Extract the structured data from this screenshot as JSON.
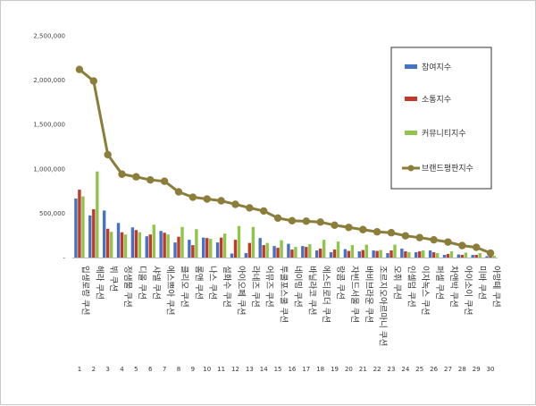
{
  "chart_data": {
    "type": "bar",
    "title": "",
    "xlabel": "",
    "ylabel": "",
    "ylim": [
      0,
      2500000
    ],
    "yticks": [
      "-",
      "500,000",
      "1,000,000",
      "1,500,000",
      "2,000,000",
      "2,500,000"
    ],
    "grid": false,
    "legend_position": "right",
    "categories": [
      "입생로랑 쿠션",
      "헤라 쿠션",
      "뷔 쿠션",
      "정샘물 쿠션",
      "디올 쿠션",
      "샤넬 쿠션",
      "에스쁘아 쿠션",
      "클리오 쿠션",
      "롬앤 쿠션",
      "나스 쿠션",
      "설화수 쿠션",
      "아이오페 쿠션",
      "라네즈 쿠션",
      "어뮤즈 쿠션",
      "투쿨포스쿨 쿠션",
      "네이밍 쿠션",
      "바닐라코 쿠션",
      "에스티로더 쿠션",
      "랑콤 쿠션",
      "자빈드서울 쿠션",
      "바비브라운 쿠션",
      "조르지오아르마니 쿠션",
      "오휘 쿠션",
      "인셀덤 쿠션",
      "이자녹스 쿠션",
      "퍼셀 쿠션",
      "차앤박 쿠션",
      "아이소이 쿠션",
      "미바 쿠션",
      "아망떼 쿠션"
    ],
    "ranks": [
      "1",
      "2",
      "3",
      "4",
      "5",
      "6",
      "7",
      "8",
      "9",
      "10",
      "11",
      "12",
      "13",
      "14",
      "15",
      "16",
      "17",
      "18",
      "19",
      "20",
      "21",
      "22",
      "23",
      "24",
      "25",
      "26",
      "27",
      "28",
      "29",
      "30"
    ],
    "series": [
      {
        "name": "참여지수",
        "type": "bar",
        "color": "#4472C4",
        "values": [
          665000,
          475000,
          530000,
          390000,
          340000,
          240000,
          300000,
          170000,
          200000,
          225000,
          170000,
          45000,
          50000,
          220000,
          130000,
          155000,
          130000,
          80000,
          60000,
          95000,
          70000,
          80000,
          50000,
          100000,
          60000,
          80000,
          30000,
          35000,
          30000,
          15000
        ]
      },
      {
        "name": "소통지수",
        "type": "bar",
        "color": "#C0392B",
        "values": [
          765000,
          545000,
          325000,
          285000,
          310000,
          260000,
          280000,
          235000,
          140000,
          220000,
          225000,
          200000,
          165000,
          140000,
          110000,
          90000,
          120000,
          100000,
          90000,
          75000,
          85000,
          75000,
          80000,
          70000,
          70000,
          60000,
          40000,
          30000,
          30000,
          15000
        ]
      },
      {
        "name": "커뮤니티지수",
        "type": "bar",
        "color": "#8FC549",
        "values": [
          690000,
          970000,
          290000,
          260000,
          285000,
          370000,
          260000,
          345000,
          320000,
          210000,
          270000,
          355000,
          345000,
          165000,
          195000,
          120000,
          150000,
          200000,
          180000,
          140000,
          145000,
          85000,
          145000,
          60000,
          80000,
          50000,
          70000,
          55000,
          50000,
          20000
        ]
      },
      {
        "name": "브랜드평판지수",
        "type": "line",
        "color": "#8B7D3A",
        "values": [
          2120000,
          1990000,
          1160000,
          940000,
          910000,
          875000,
          860000,
          740000,
          680000,
          660000,
          640000,
          600000,
          560000,
          525000,
          445000,
          415000,
          410000,
          400000,
          365000,
          340000,
          315000,
          290000,
          280000,
          245000,
          225000,
          200000,
          175000,
          135000,
          115000,
          50000
        ]
      }
    ]
  }
}
